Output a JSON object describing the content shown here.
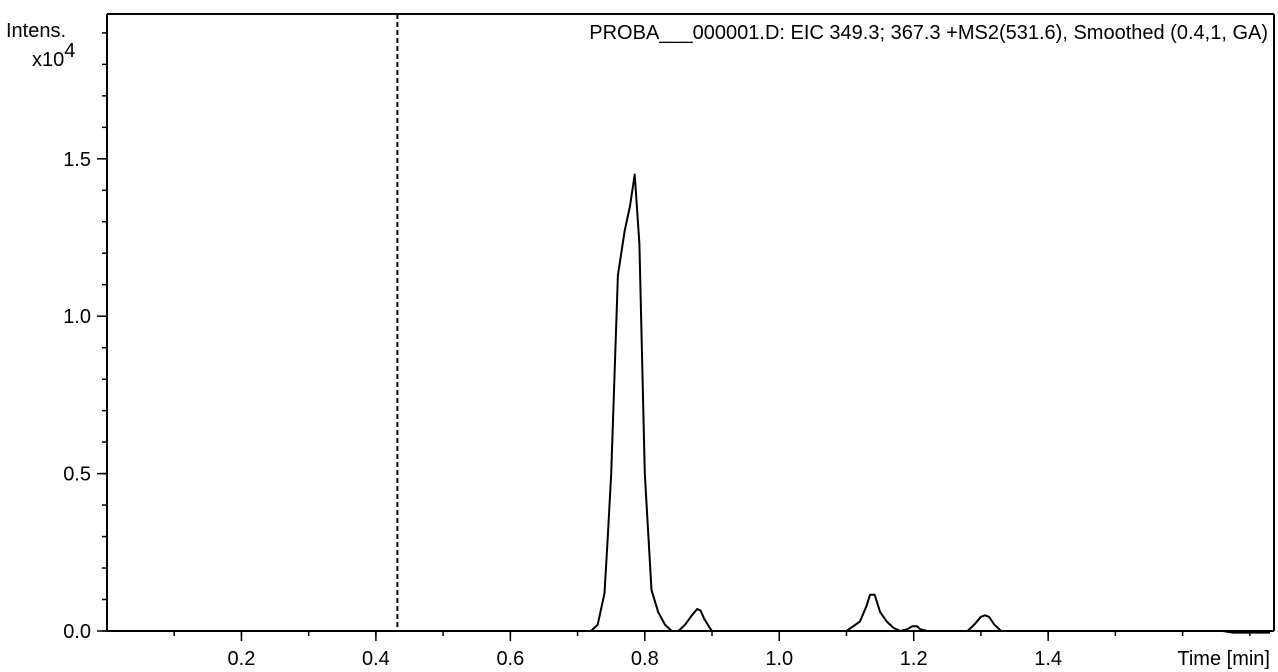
{
  "chart_data": {
    "type": "line",
    "title": "PROBA___000001.D: EIC 349.3; 367.3 +MS2(531.6), Smoothed (0.4,1, GA)",
    "ylabel_line1": "Intens.",
    "ylabel_multiplier": "x10",
    "ylabel_exponent": "4",
    "xlabel": "Time [min]",
    "xlim": [
      0.0,
      1.73
    ],
    "ylim": [
      0.0,
      1.96
    ],
    "x_ticks": [
      {
        "value": 0.2,
        "label": "0.2"
      },
      {
        "value": 0.4,
        "label": "0.4"
      },
      {
        "value": 0.6,
        "label": "0.6"
      },
      {
        "value": 0.8,
        "label": "0.8"
      },
      {
        "value": 1.0,
        "label": "1.0"
      },
      {
        "value": 1.2,
        "label": "1.2"
      },
      {
        "value": 1.4,
        "label": "1.4"
      }
    ],
    "y_ticks": [
      {
        "value": 0.0,
        "label": "0.0"
      },
      {
        "value": 0.5,
        "label": "0.5"
      },
      {
        "value": 1.0,
        "label": "1.0"
      },
      {
        "value": 1.5,
        "label": "1.5"
      }
    ],
    "cursor_x": 0.432,
    "grid": false,
    "series": [
      {
        "x": [
          0.0,
          0.72,
          0.73,
          0.74,
          0.745,
          0.75,
          0.76,
          0.77,
          0.778,
          0.785,
          0.792,
          0.8,
          0.81,
          0.82,
          0.83,
          0.84,
          0.85,
          0.86,
          0.87,
          0.878,
          0.883,
          0.888,
          0.895,
          0.9,
          0.91,
          1.0,
          1.1,
          1.12,
          1.13,
          1.135,
          1.142,
          1.15,
          1.16,
          1.17,
          1.18,
          1.19,
          1.198,
          1.205,
          1.21,
          1.22,
          1.28,
          1.29,
          1.3,
          1.306,
          1.312,
          1.32,
          1.33,
          1.5,
          1.66,
          1.675,
          1.69,
          1.73
        ],
        "y": [
          0.0,
          0.0,
          0.02,
          0.12,
          0.3,
          0.5,
          1.13,
          1.27,
          1.35,
          1.45,
          1.23,
          0.5,
          0.13,
          0.06,
          0.02,
          0.0,
          0.0,
          0.02,
          0.05,
          0.07,
          0.065,
          0.04,
          0.015,
          0.0,
          0.0,
          0.0,
          0.0,
          0.03,
          0.08,
          0.115,
          0.115,
          0.06,
          0.03,
          0.01,
          0.0,
          0.005,
          0.015,
          0.015,
          0.005,
          0.0,
          0.0,
          0.02,
          0.045,
          0.05,
          0.045,
          0.02,
          0.0,
          0.0,
          0.0,
          -0.005,
          -0.005,
          -0.005
        ]
      }
    ]
  }
}
